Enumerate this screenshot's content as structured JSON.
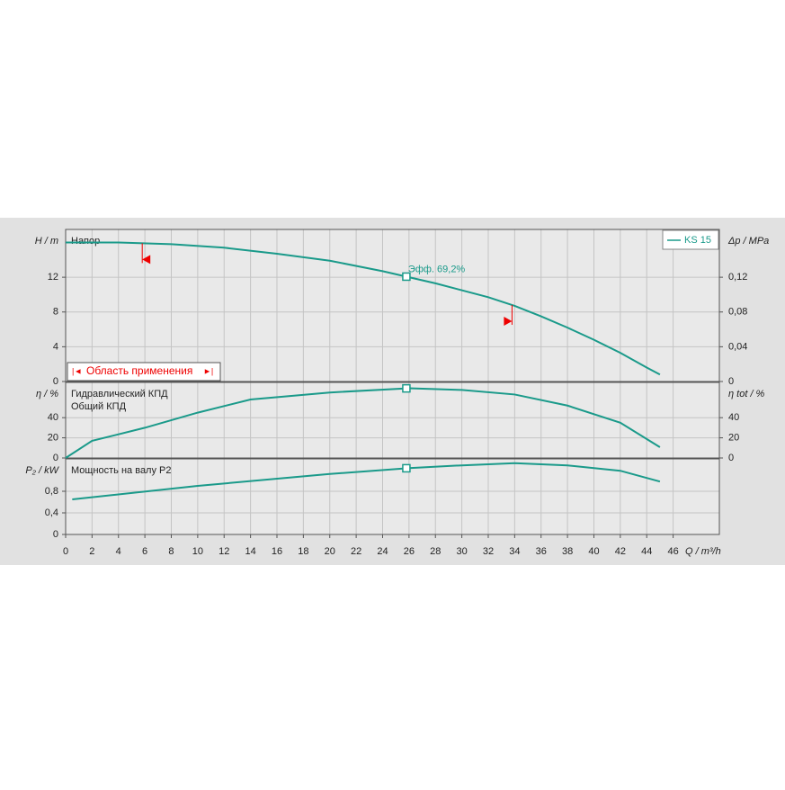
{
  "chart_data": [
    {
      "type": "line",
      "ylabel": "H / m",
      "y2label": "Δp / MPa",
      "label": "Напор",
      "annotation": "Эфф.  69,2%",
      "range_label": "Область применения",
      "range_limits": [
        5.8,
        33.8
      ],
      "duty_q": 25.8,
      "x": [
        0,
        4,
        8,
        12,
        16,
        20,
        24,
        26,
        28,
        32,
        34,
        36,
        38,
        40,
        42,
        44,
        45
      ],
      "series": [
        {
          "name": "KS 15",
          "color": "#1a9a8a",
          "values": [
            16.0,
            16.0,
            15.8,
            15.4,
            14.7,
            13.9,
            12.7,
            12.0,
            11.3,
            9.7,
            8.7,
            7.5,
            6.2,
            4.8,
            3.3,
            1.6,
            0.8
          ]
        }
      ],
      "xlim": [
        0,
        49.5
      ],
      "ylim": [
        0,
        17.5
      ],
      "yticks": [
        0,
        4,
        8,
        12
      ],
      "y2lim": [
        0,
        0.175
      ],
      "y2ticks": [
        0,
        {
          "value": 0.04,
          "label": "0,04"
        },
        {
          "value": 0.08,
          "label": "0,08"
        },
        {
          "value": 0.12,
          "label": "0,12"
        }
      ],
      "grid": true
    },
    {
      "type": "line",
      "ylabel": "η / %",
      "y2label": "η tot / %",
      "labels": [
        "Гидравлический КПД",
        "Общий КПД"
      ],
      "duty_q": 25.8,
      "x": [
        0,
        2,
        6,
        10,
        14,
        20,
        26,
        30,
        34,
        38,
        42,
        45
      ],
      "series": [
        {
          "color": "#1a9a8a",
          "values": [
            0,
            17,
            30,
            45,
            58,
            65,
            69.2,
            67.5,
            63,
            52,
            35,
            10.7
          ]
        }
      ],
      "xlim": [
        0,
        49.5
      ],
      "ylim": [
        0,
        75
      ],
      "yticks": [
        0,
        20,
        40
      ],
      "y2lim": [
        0,
        75
      ],
      "y2ticks": [
        0,
        20,
        40
      ],
      "grid": true
    },
    {
      "type": "line",
      "ylabel": "P₂ / kW",
      "xlabel": "Q / m³/h",
      "label": "Мощность на валу P2",
      "duty_q": 25.8,
      "x": [
        0.5,
        10,
        20,
        26,
        30,
        34,
        38,
        42,
        45
      ],
      "series": [
        {
          "color": "#1a9a8a",
          "values": [
            0.65,
            0.9,
            1.12,
            1.23,
            1.28,
            1.32,
            1.28,
            1.18,
            0.98
          ]
        }
      ],
      "xlim": [
        0,
        49.5
      ],
      "ylim": [
        0,
        1.4
      ],
      "yticks": [
        0,
        {
          "value": 0.4,
          "label": "0,4"
        },
        {
          "value": 0.8,
          "label": "0,8"
        }
      ],
      "xticks": [
        0,
        2,
        4,
        6,
        8,
        10,
        12,
        14,
        16,
        18,
        20,
        22,
        24,
        26,
        28,
        30,
        32,
        34,
        36,
        38,
        40,
        42,
        44,
        46
      ],
      "grid": true
    }
  ]
}
